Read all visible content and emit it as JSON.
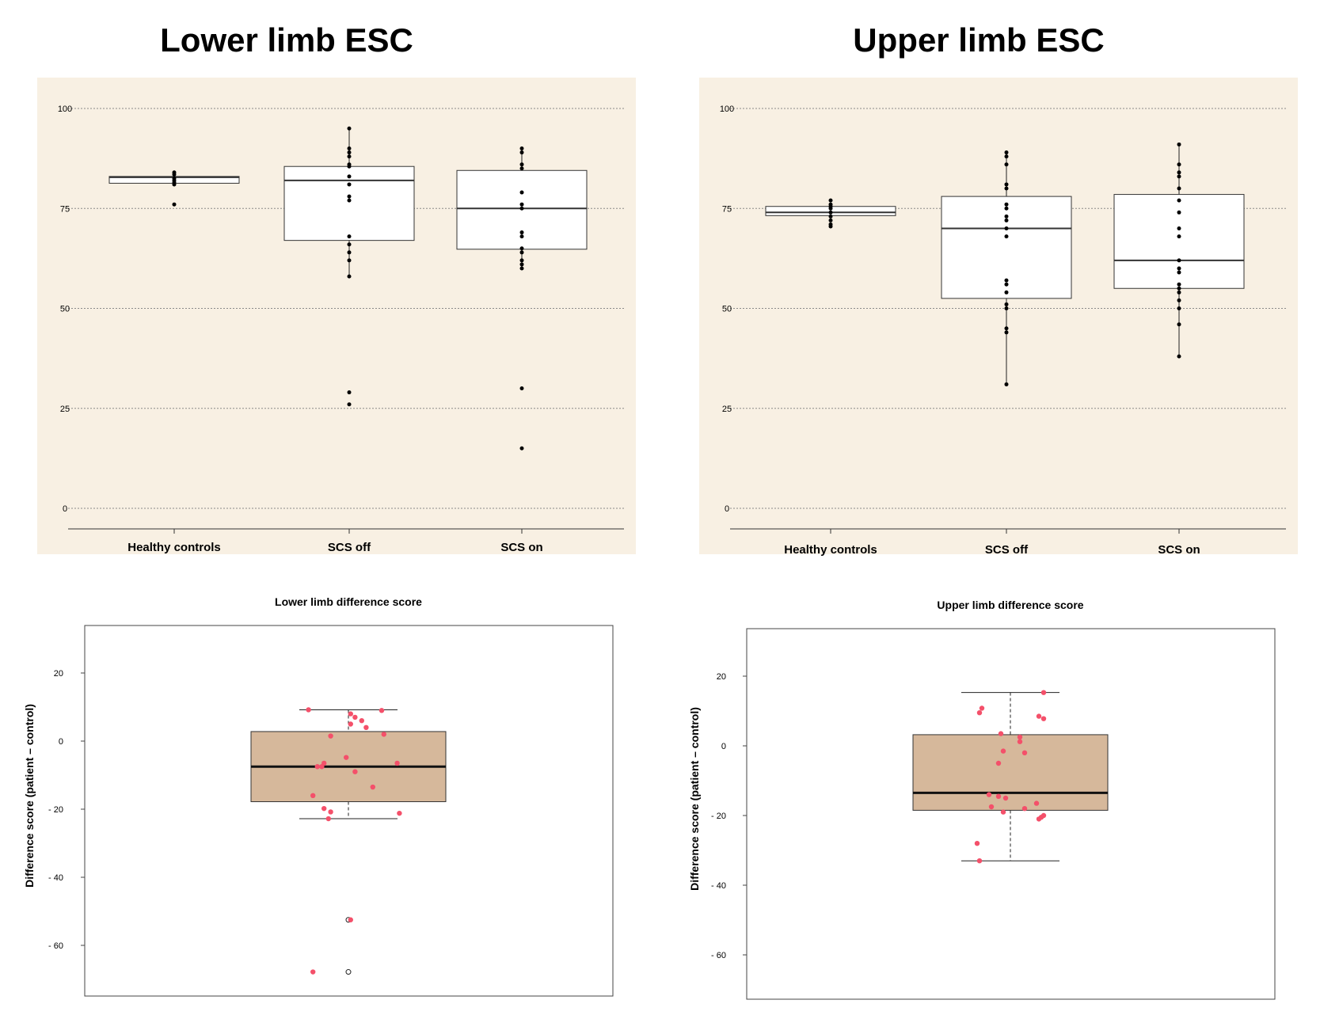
{
  "colors": {
    "panel_bg": "#f8f0e3",
    "grid": "#8a8a8a",
    "box_fill_top": "#ffffff",
    "box_fill_bottom": "#d6b89b",
    "point_top": "#000000",
    "point_bottom": "#f4506a"
  },
  "chart_data": [
    {
      "type": "box",
      "title": "Lower limb ESC",
      "ylim": [
        -5,
        105
      ],
      "yticks": [
        0,
        25,
        50,
        75,
        100
      ],
      "ytick_labels": [
        "0",
        "25",
        "50",
        "75",
        "100"
      ],
      "grid": true,
      "categories": [
        "Healthy controls",
        "SCS off",
        "SCS on"
      ],
      "boxes": [
        {
          "q1": 81.3,
          "median": 82.8,
          "q3": 83.0,
          "whisker_low": 81.3,
          "whisker_high": 83.0
        },
        {
          "q1": 67,
          "median": 82,
          "q3": 85.5,
          "whisker_low": 58,
          "whisker_high": 95
        },
        {
          "q1": 64.8,
          "median": 75,
          "q3": 84.5,
          "whisker_low": 60,
          "whisker_high": 90
        }
      ],
      "points": [
        [
          84,
          83.5,
          82.5,
          82,
          81.5,
          81,
          76
        ],
        [
          95,
          90,
          89,
          88,
          86,
          85.5,
          83,
          81,
          78,
          77,
          68,
          66,
          64,
          62,
          58,
          29,
          26
        ],
        [
          90,
          89,
          86,
          85,
          79,
          76,
          75,
          69,
          68,
          65,
          64,
          62,
          61,
          60,
          30,
          15
        ]
      ]
    },
    {
      "type": "box",
      "title": "Upper limb ESC",
      "ylim": [
        -5,
        105
      ],
      "yticks": [
        0,
        25,
        50,
        75,
        100
      ],
      "ytick_labels": [
        "0",
        "25",
        "50",
        "75",
        "100"
      ],
      "grid": true,
      "categories": [
        "Healthy controls",
        "SCS off",
        "SCS on"
      ],
      "boxes": [
        {
          "q1": 73.2,
          "median": 74,
          "q3": 75.5,
          "whisker_low": 73.2,
          "whisker_high": 75.5
        },
        {
          "q1": 52.5,
          "median": 70,
          "q3": 78,
          "whisker_low": 31,
          "whisker_high": 89
        },
        {
          "q1": 55,
          "median": 62,
          "q3": 78.5,
          "whisker_low": 38,
          "whisker_high": 91
        }
      ],
      "points": [
        [
          77,
          76,
          75.5,
          75,
          74,
          73,
          72,
          71,
          70.5
        ],
        [
          89,
          88,
          86,
          81,
          80,
          76,
          75,
          73,
          72,
          70,
          68,
          57,
          56,
          54,
          51,
          50,
          45,
          44,
          31
        ],
        [
          91,
          86,
          84,
          83,
          80,
          77,
          74,
          70,
          68,
          62,
          60,
          59,
          56,
          55,
          54,
          52,
          50,
          46,
          38
        ]
      ]
    },
    {
      "type": "box",
      "title": "Lower limb difference score",
      "ylabel": "Difference score (patient – control)",
      "ylim": [
        -72,
        35
      ],
      "yticks": [
        20,
        0,
        -20,
        -40,
        -60
      ],
      "ytick_labels": [
        "20",
        "0",
        "- 20",
        "- 40",
        "- 60"
      ],
      "grid": false,
      "box": {
        "q1": -17.8,
        "median": -7.5,
        "q3": 2.8,
        "whisker_low": -22.8,
        "whisker_high": 9.2
      },
      "outliers": [
        -52.5,
        -67.8
      ],
      "points": [
        [
          -1.8,
          9.2
        ],
        [
          0.1,
          8
        ],
        [
          0.3,
          7
        ],
        [
          0.6,
          6
        ],
        [
          0.1,
          5
        ],
        [
          0.8,
          4
        ],
        [
          1.5,
          9
        ],
        [
          1.6,
          2
        ],
        [
          -0.8,
          1.5
        ],
        [
          -1.1,
          -6.5
        ],
        [
          -1.4,
          -7.5
        ],
        [
          -1.2,
          -7.5
        ],
        [
          -0.1,
          -4.8
        ],
        [
          0.3,
          -9
        ],
        [
          1.1,
          -13.5
        ],
        [
          2.2,
          -6.5
        ],
        [
          -1.6,
          -16
        ],
        [
          -1.1,
          -19.8
        ],
        [
          -0.8,
          -20.8
        ],
        [
          2.3,
          -21.2
        ],
        [
          -0.9,
          -22.8
        ],
        [
          0.1,
          -52.5
        ],
        [
          -1.6,
          -67.8
        ]
      ]
    },
    {
      "type": "box",
      "title": "Upper limb difference score",
      "ylabel": "Difference score (patient – control)",
      "ylim": [
        -72,
        35
      ],
      "yticks": [
        20,
        0,
        -20,
        -40,
        -60
      ],
      "ytick_labels": [
        "20",
        "0",
        "- 20",
        "- 40",
        "- 60"
      ],
      "grid": false,
      "box": {
        "q1": -18.5,
        "median": -13.5,
        "q3": 3.2,
        "whisker_low": -33,
        "whisker_high": 15.3
      },
      "outliers": [],
      "points": [
        [
          1.4,
          15.3
        ],
        [
          -1.2,
          10.8
        ],
        [
          -1.3,
          9.5
        ],
        [
          1.2,
          8.5
        ],
        [
          1.4,
          7.8
        ],
        [
          -0.4,
          3.5
        ],
        [
          0.4,
          2.5
        ],
        [
          0.4,
          1.2
        ],
        [
          -0.3,
          -1.5
        ],
        [
          0.6,
          -2
        ],
        [
          -0.5,
          -5
        ],
        [
          -0.9,
          -14
        ],
        [
          -0.5,
          -14.5
        ],
        [
          -0.2,
          -15
        ],
        [
          1.1,
          -16.5
        ],
        [
          -0.8,
          -17.5
        ],
        [
          0.6,
          -18
        ],
        [
          -0.3,
          -19
        ],
        [
          1.4,
          -20
        ],
        [
          1.3,
          -20.5
        ],
        [
          1.2,
          -21
        ],
        [
          -1.4,
          -28
        ],
        [
          -1.3,
          -33
        ]
      ]
    }
  ]
}
